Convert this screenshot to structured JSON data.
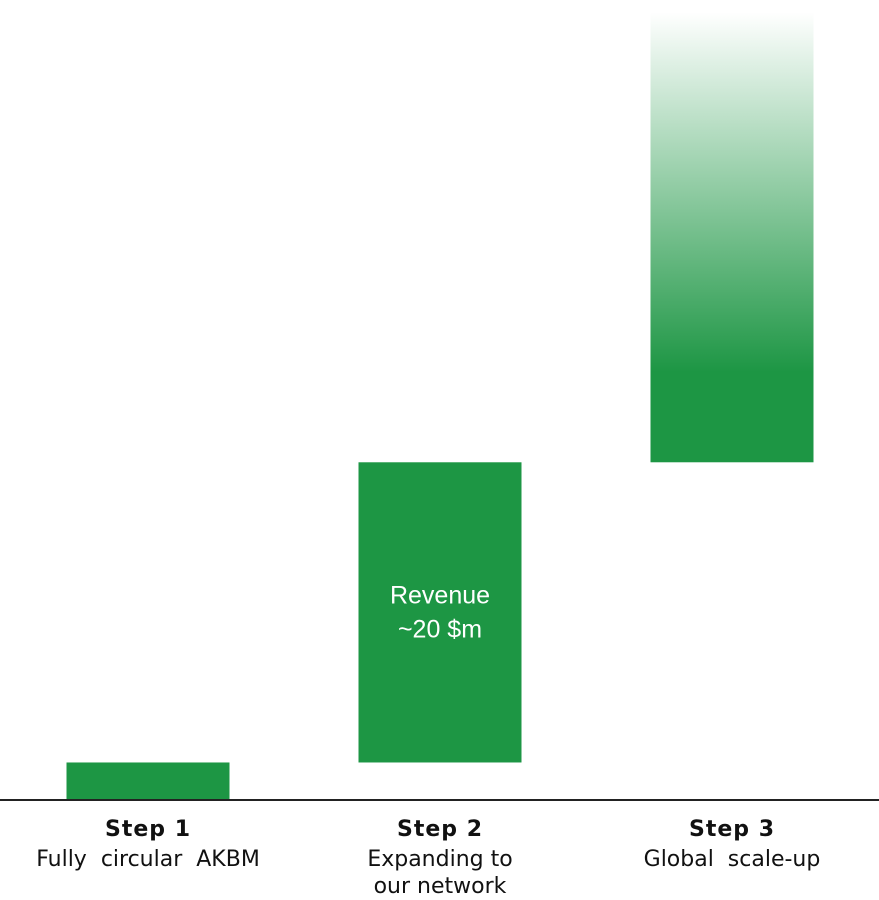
{
  "chart_data": {
    "type": "bar",
    "subtype": "waterfall",
    "categories": [
      "Step 1",
      "Step 2",
      "Step 3"
    ],
    "steps": [
      {
        "title": "Step 1",
        "desc": [
          "Fully  circular  AKBM"
        ],
        "base": 0,
        "top": 1,
        "gradient": false
      },
      {
        "title": "Step 2",
        "desc": [
          "Expanding to",
          "our network"
        ],
        "base": 1,
        "top": 9,
        "gradient": false,
        "label": [
          "Revenue",
          "~20 $m"
        ]
      },
      {
        "title": "Step 3",
        "desc": [
          "Global  scale-up"
        ],
        "base": 9,
        "top": 21,
        "gradient": true
      }
    ],
    "ylim": [
      0,
      21
    ],
    "grid": false,
    "legend": "none"
  },
  "colors": {
    "bar": "#1d9644",
    "axis": "#222222",
    "text": "#111111"
  }
}
